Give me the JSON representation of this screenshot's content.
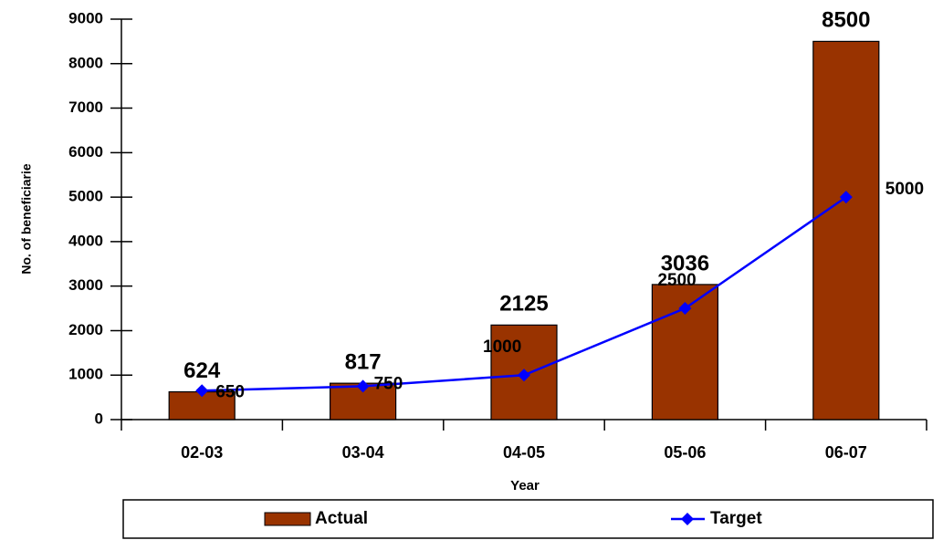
{
  "chart_data": {
    "type": "bar-line",
    "x_label": "Year",
    "y_label": "No. of beneficiarie",
    "categories": [
      "02-03",
      "03-04",
      "04-05",
      "05-06",
      "06-07"
    ],
    "series": [
      {
        "name": "Actual",
        "type": "bar",
        "color": "#993300",
        "values": [
          624,
          817,
          2125,
          3036,
          8500
        ]
      },
      {
        "name": "Target",
        "type": "line",
        "color": "#0000ff",
        "values": [
          650,
          750,
          1000,
          2500,
          5000
        ]
      }
    ],
    "ylim": [
      0,
      9000
    ],
    "yticks": [
      0,
      1000,
      2000,
      3000,
      4000,
      5000,
      6000,
      7000,
      8000,
      9000
    ],
    "legend": "bottom"
  }
}
